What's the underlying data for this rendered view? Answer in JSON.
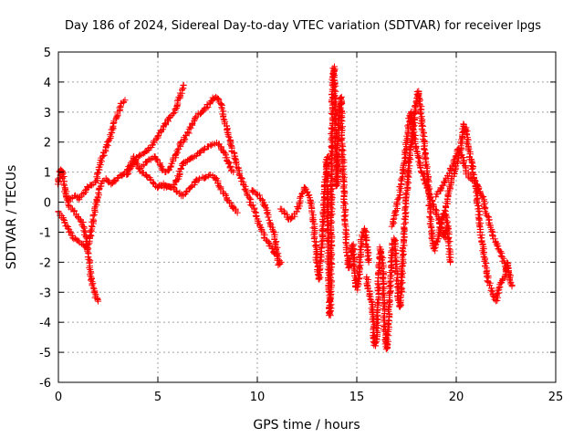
{
  "chart_data": {
    "type": "scatter",
    "title": "Day 186 of 2024, Sidereal Day-to-day VTEC variation (SDTVAR) for receiver lpgs",
    "xlabel": "GPS time / hours",
    "ylabel": "SDTVAR / TECUs",
    "xlim": [
      0,
      25
    ],
    "ylim": [
      -6,
      5
    ],
    "xticks": [
      0,
      5,
      10,
      15,
      20,
      25
    ],
    "yticks": [
      -6,
      -5,
      -4,
      -3,
      -2,
      -1,
      0,
      1,
      2,
      3,
      4,
      5
    ],
    "xtick_labels": [
      "0",
      "5",
      "10",
      "15",
      "20",
      "25"
    ],
    "ytick_labels": [
      "-6",
      "-5",
      "-4",
      "-3",
      "-2",
      "-1",
      "0",
      "1",
      "2",
      "3",
      "4",
      "5"
    ],
    "grid": true,
    "marker": "+",
    "color": "#ff0000",
    "series": [
      {
        "name": "t1",
        "points": [
          [
            0,
            -0.3
          ],
          [
            0.2,
            -0.5
          ],
          [
            0.4,
            -0.8
          ],
          [
            0.6,
            -1.0
          ],
          [
            0.8,
            -1.2
          ],
          [
            1.0,
            -1.3
          ],
          [
            1.2,
            -1.4
          ],
          [
            1.4,
            -1.5
          ],
          [
            1.6,
            -1.2
          ],
          [
            1.8,
            -0.4
          ],
          [
            2.0,
            0.2
          ],
          [
            2.2,
            0.7
          ],
          [
            2.4,
            0.8
          ],
          [
            2.6,
            0.6
          ],
          [
            2.8,
            0.7
          ],
          [
            3.0,
            0.8
          ],
          [
            3.2,
            0.9
          ],
          [
            3.4,
            1.0
          ],
          [
            3.6,
            1.2
          ],
          [
            3.8,
            1.5
          ],
          [
            4.0,
            1.2
          ],
          [
            4.2,
            1.0
          ],
          [
            4.4,
            0.9
          ],
          [
            4.6,
            0.8
          ],
          [
            4.8,
            0.6
          ],
          [
            5.0,
            0.5
          ],
          [
            5.2,
            0.55
          ],
          [
            5.4,
            0.5
          ],
          [
            5.6,
            0.5
          ],
          [
            5.8,
            0.5
          ],
          [
            6.0,
            0.8
          ],
          [
            6.2,
            1.2
          ],
          [
            6.4,
            1.35
          ],
          [
            6.6,
            1.4
          ],
          [
            6.8,
            1.5
          ],
          [
            7.0,
            1.6
          ],
          [
            7.2,
            1.7
          ],
          [
            7.4,
            1.8
          ],
          [
            7.6,
            1.85
          ],
          [
            7.8,
            1.95
          ],
          [
            8.0,
            1.95
          ],
          [
            8.2,
            1.8
          ],
          [
            8.4,
            1.6
          ],
          [
            8.6,
            1.2
          ],
          [
            8.8,
            1.0
          ]
        ]
      },
      {
        "name": "t2",
        "points": [
          [
            0,
            0.6
          ],
          [
            0.1,
            1.1
          ],
          [
            0.2,
            1.0
          ],
          [
            0.3,
            0.5
          ],
          [
            0.4,
            0.2
          ],
          [
            0.5,
            0.0
          ],
          [
            0.6,
            -0.2
          ],
          [
            0.8,
            -0.3
          ],
          [
            1.0,
            -0.5
          ],
          [
            1.2,
            -0.7
          ],
          [
            1.4,
            -1.2
          ],
          [
            1.5,
            -1.7
          ],
          [
            1.6,
            -2.3
          ],
          [
            1.7,
            -2.7
          ],
          [
            1.8,
            -3.0
          ],
          [
            1.9,
            -3.2
          ],
          [
            2.0,
            -3.3
          ]
        ]
      },
      {
        "name": "t3",
        "points": [
          [
            0.5,
            0.1
          ],
          [
            0.8,
            0.2
          ],
          [
            1.0,
            0.1
          ],
          [
            1.3,
            0.3
          ],
          [
            1.5,
            0.5
          ],
          [
            1.7,
            0.6
          ],
          [
            1.9,
            0.7
          ],
          [
            2.0,
            1.0
          ],
          [
            2.2,
            1.5
          ],
          [
            2.4,
            1.8
          ],
          [
            2.6,
            2.2
          ],
          [
            2.8,
            2.6
          ],
          [
            3.0,
            3.0
          ],
          [
            3.2,
            3.3
          ],
          [
            3.35,
            3.4
          ]
        ]
      },
      {
        "name": "t4",
        "points": [
          [
            3.4,
            0.9
          ],
          [
            3.6,
            1.1
          ],
          [
            3.8,
            1.3
          ],
          [
            4.0,
            1.5
          ],
          [
            4.2,
            1.6
          ],
          [
            4.4,
            1.7
          ],
          [
            4.6,
            1.8
          ],
          [
            4.8,
            2.0
          ],
          [
            5.0,
            2.2
          ],
          [
            5.2,
            2.4
          ],
          [
            5.4,
            2.6
          ],
          [
            5.6,
            2.8
          ],
          [
            5.8,
            3.0
          ],
          [
            6.0,
            3.3
          ],
          [
            6.2,
            3.7
          ],
          [
            6.3,
            3.9
          ]
        ]
      },
      {
        "name": "t5",
        "points": [
          [
            4.2,
            1.2
          ],
          [
            4.5,
            1.4
          ],
          [
            4.8,
            1.5
          ],
          [
            5.0,
            1.4
          ],
          [
            5.2,
            1.1
          ],
          [
            5.4,
            1.0
          ],
          [
            5.6,
            1.1
          ],
          [
            5.8,
            1.4
          ],
          [
            6.0,
            1.7
          ],
          [
            6.2,
            2.0
          ],
          [
            6.4,
            2.2
          ],
          [
            6.6,
            2.4
          ],
          [
            6.8,
            2.7
          ],
          [
            7.0,
            2.9
          ],
          [
            7.2,
            3.0
          ],
          [
            7.4,
            3.1
          ],
          [
            7.6,
            3.3
          ],
          [
            7.8,
            3.45
          ],
          [
            8.0,
            3.5
          ],
          [
            8.2,
            3.2
          ],
          [
            8.4,
            2.6
          ],
          [
            8.6,
            2.1
          ],
          [
            8.8,
            1.6
          ],
          [
            9.0,
            1.2
          ],
          [
            9.2,
            0.8
          ],
          [
            9.4,
            0.4
          ],
          [
            9.6,
            0.1
          ],
          [
            9.8,
            -0.2
          ],
          [
            10.0,
            -0.6
          ],
          [
            10.2,
            -0.9
          ],
          [
            10.4,
            -1.2
          ],
          [
            10.6,
            -1.4
          ],
          [
            10.8,
            -1.6
          ],
          [
            11.0,
            -1.8
          ]
        ]
      },
      {
        "name": "t6",
        "points": [
          [
            5.0,
            0.5
          ],
          [
            5.3,
            0.6
          ],
          [
            5.6,
            0.5
          ],
          [
            5.9,
            0.4
          ],
          [
            6.2,
            0.2
          ],
          [
            6.5,
            0.4
          ],
          [
            6.8,
            0.6
          ],
          [
            7.0,
            0.75
          ],
          [
            7.2,
            0.8
          ],
          [
            7.4,
            0.85
          ],
          [
            7.6,
            0.9
          ],
          [
            7.8,
            0.85
          ],
          [
            8.0,
            0.7
          ],
          [
            8.2,
            0.4
          ],
          [
            8.4,
            0.2
          ],
          [
            8.6,
            0.0
          ],
          [
            8.8,
            -0.2
          ],
          [
            9.0,
            -0.35
          ]
        ]
      },
      {
        "name": "t7",
        "points": [
          [
            9.7,
            0.4
          ],
          [
            9.9,
            0.3
          ],
          [
            10.1,
            0.2
          ],
          [
            10.3,
            0.0
          ],
          [
            10.5,
            -0.3
          ],
          [
            10.7,
            -0.8
          ],
          [
            10.9,
            -1.2
          ],
          [
            11.0,
            -1.7
          ],
          [
            11.1,
            -2.1
          ],
          [
            11.2,
            -2.0
          ]
        ]
      },
      {
        "name": "t8",
        "points": [
          [
            11.2,
            -0.2
          ],
          [
            11.4,
            -0.4
          ],
          [
            11.6,
            -0.6
          ],
          [
            11.8,
            -0.5
          ],
          [
            12.0,
            -0.3
          ],
          [
            12.2,
            0.2
          ],
          [
            12.4,
            0.5
          ],
          [
            12.6,
            0.2
          ],
          [
            12.8,
            -0.5
          ],
          [
            12.9,
            -1.2
          ],
          [
            13.0,
            -2.0
          ],
          [
            13.1,
            -2.6
          ],
          [
            13.2,
            -1.8
          ],
          [
            13.3,
            -0.8
          ],
          [
            13.4,
            0.6
          ],
          [
            13.5,
            1.5
          ],
          [
            13.55,
            -1.0
          ],
          [
            13.6,
            -2.5
          ],
          [
            13.65,
            -3.8
          ],
          [
            13.7,
            -3.0
          ],
          [
            13.75,
            2.5
          ],
          [
            13.8,
            4.2
          ],
          [
            13.85,
            4.5
          ],
          [
            13.9,
            3.8
          ],
          [
            13.95,
            2.0
          ],
          [
            14.0,
            0.5
          ],
          [
            14.1,
            2.8
          ],
          [
            14.2,
            3.5
          ],
          [
            14.3,
            1.5
          ],
          [
            14.4,
            -0.5
          ],
          [
            14.5,
            -1.6
          ],
          [
            14.6,
            -2.2
          ],
          [
            14.7,
            -1.8
          ],
          [
            14.8,
            -1.4
          ],
          [
            14.9,
            -2.4
          ],
          [
            15.0,
            -2.9
          ],
          [
            15.1,
            -2.5
          ],
          [
            15.2,
            -1.5
          ],
          [
            15.3,
            -1.0
          ],
          [
            15.4,
            -0.9
          ],
          [
            15.5,
            -1.4
          ],
          [
            15.6,
            -2.0
          ]
        ]
      },
      {
        "name": "t9",
        "points": [
          [
            15.5,
            -2.5
          ],
          [
            15.6,
            -3.0
          ],
          [
            15.7,
            -3.2
          ],
          [
            15.8,
            -3.6
          ],
          [
            15.85,
            -4.4
          ],
          [
            15.9,
            -4.8
          ],
          [
            16.0,
            -4.6
          ],
          [
            16.1,
            -2.6
          ],
          [
            16.2,
            -1.5
          ],
          [
            16.3,
            -2.0
          ],
          [
            16.4,
            -4.2
          ],
          [
            16.5,
            -4.9
          ],
          [
            16.6,
            -4.0
          ],
          [
            16.7,
            -2.5
          ],
          [
            16.8,
            -1.4
          ],
          [
            16.9,
            -1.2
          ],
          [
            17.0,
            -2.2
          ],
          [
            17.1,
            -3.3
          ],
          [
            17.2,
            -3.5
          ],
          [
            17.3,
            -2.0
          ],
          [
            17.4,
            -0.8
          ],
          [
            17.5,
            0.2
          ],
          [
            17.6,
            1.0
          ],
          [
            17.7,
            1.8
          ],
          [
            17.8,
            2.2
          ],
          [
            17.9,
            2.8
          ],
          [
            18.0,
            3.5
          ],
          [
            18.1,
            3.7
          ],
          [
            18.2,
            3.2
          ],
          [
            18.3,
            2.5
          ],
          [
            18.4,
            1.8
          ],
          [
            18.5,
            1.2
          ],
          [
            18.6,
            0.6
          ],
          [
            18.7,
            -0.5
          ],
          [
            18.8,
            -1.3
          ],
          [
            18.9,
            -1.6
          ],
          [
            19.0,
            -1.4
          ],
          [
            19.1,
            -1.2
          ],
          [
            19.2,
            -0.8
          ],
          [
            19.3,
            -0.5
          ],
          [
            19.4,
            -0.3
          ],
          [
            19.5,
            -0.5
          ],
          [
            19.6,
            -1.0
          ],
          [
            19.7,
            -2.0
          ]
        ]
      },
      {
        "name": "t10",
        "points": [
          [
            16.8,
            -0.8
          ],
          [
            17.0,
            -0.2
          ],
          [
            17.2,
            0.5
          ],
          [
            17.4,
            1.3
          ],
          [
            17.5,
            2.0
          ],
          [
            17.6,
            2.6
          ],
          [
            17.7,
            3.0
          ],
          [
            17.8,
            2.6
          ],
          [
            18.0,
            1.8
          ],
          [
            18.2,
            1.2
          ],
          [
            18.4,
            0.8
          ],
          [
            18.6,
            0.3
          ],
          [
            18.8,
            0.0
          ],
          [
            19.0,
            -0.3
          ],
          [
            19.2,
            -0.8
          ],
          [
            19.4,
            -1.2
          ],
          [
            19.6,
            -0.8
          ]
        ]
      },
      {
        "name": "t11",
        "points": [
          [
            19.5,
            -0.2
          ],
          [
            19.6,
            0.3
          ],
          [
            19.8,
            0.8
          ],
          [
            20.0,
            1.2
          ],
          [
            20.2,
            1.7
          ],
          [
            20.3,
            2.2
          ],
          [
            20.4,
            2.6
          ],
          [
            20.5,
            2.4
          ],
          [
            20.6,
            1.8
          ],
          [
            20.7,
            1.5
          ],
          [
            20.8,
            1.2
          ],
          [
            20.9,
            0.8
          ],
          [
            21.0,
            0.4
          ],
          [
            21.1,
            -0.2
          ],
          [
            21.2,
            -0.8
          ],
          [
            21.3,
            -1.4
          ],
          [
            21.4,
            -1.8
          ],
          [
            21.5,
            -2.2
          ],
          [
            21.6,
            -2.6
          ],
          [
            21.7,
            -2.8
          ],
          [
            21.8,
            -3.0
          ],
          [
            21.9,
            -3.2
          ],
          [
            22.0,
            -3.3
          ],
          [
            22.1,
            -3.0
          ],
          [
            22.2,
            -2.8
          ],
          [
            22.3,
            -2.6
          ],
          [
            22.4,
            -2.5
          ],
          [
            22.5,
            -2.2
          ],
          [
            22.6,
            -2.0
          ],
          [
            22.7,
            -2.5
          ],
          [
            22.8,
            -2.8
          ]
        ]
      },
      {
        "name": "t12",
        "points": [
          [
            19.0,
            0.2
          ],
          [
            19.3,
            0.5
          ],
          [
            19.6,
            0.9
          ],
          [
            19.9,
            1.4
          ],
          [
            20.1,
            1.8
          ],
          [
            20.3,
            1.5
          ],
          [
            20.5,
            1.0
          ],
          [
            20.7,
            0.8
          ],
          [
            20.9,
            0.7
          ],
          [
            21.1,
            0.5
          ],
          [
            21.3,
            0.2
          ],
          [
            21.5,
            -0.3
          ],
          [
            21.7,
            -0.8
          ],
          [
            21.9,
            -1.2
          ],
          [
            22.1,
            -1.5
          ],
          [
            22.3,
            -1.8
          ],
          [
            22.5,
            -2.2
          ],
          [
            22.7,
            -2.5
          ]
        ]
      }
    ]
  }
}
